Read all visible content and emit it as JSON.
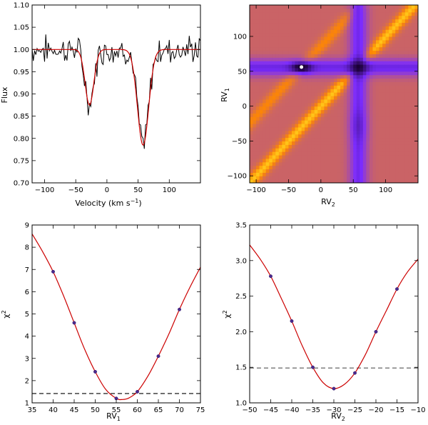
{
  "chart_data": [
    {
      "id": "spectrum",
      "type": "line",
      "xlabel": "Velocity (km s",
      "xlabel_sup": "−1",
      "xlabel_end": ")",
      "ylabel": "Flux",
      "xlim": [
        -120,
        150
      ],
      "ylim": [
        0.7,
        1.1
      ],
      "xticks": [
        -100,
        -50,
        0,
        50,
        100
      ],
      "xtick_labels": [
        "−100",
        "−50",
        "0",
        "50",
        "100"
      ],
      "yticks": [
        0.7,
        0.75,
        0.8,
        0.85,
        0.9,
        0.95,
        1.0,
        1.05,
        1.1
      ],
      "ytick_labels": [
        "0.70",
        "0.75",
        "0.80",
        "0.85",
        "0.90",
        "0.95",
        "1.00",
        "1.05",
        "1.10"
      ],
      "model": {
        "name": "fit",
        "color": "#cc0000",
        "continuum": 1.0,
        "components": [
          {
            "center": -28,
            "depth": 0.125,
            "sigma": 7
          },
          {
            "center": 58,
            "depth": 0.215,
            "sigma": 9
          }
        ]
      },
      "observed": {
        "name": "observed",
        "color": "#000000",
        "step": 2,
        "noise": 0.025
      }
    },
    {
      "id": "chi2map",
      "type": "heatmap",
      "xlabel": "RV",
      "xlabel_sub": "2",
      "ylabel": "RV",
      "ylabel_sub": "1",
      "xlim": [
        -110,
        150
      ],
      "ylim": [
        -110,
        145
      ],
      "xticks": [
        -100,
        -50,
        0,
        50,
        100
      ],
      "xtick_labels": [
        "−100",
        "−50",
        "0",
        "50",
        "100"
      ],
      "yticks": [
        -100,
        -50,
        0,
        50,
        100
      ],
      "ytick_labels": [
        "−100",
        "−50",
        "0",
        "50",
        "100"
      ],
      "grid_step": 5,
      "minimum": {
        "rv2": -30,
        "rv1": 56
      },
      "secondary_minimum": {
        "rv2": 58,
        "rv1": -28
      },
      "colors": {
        "low": "#1a0033",
        "mid": "#7b2cff",
        "high": "#ff8800",
        "peak": "#ffff33",
        "marker": "#ffffff"
      }
    },
    {
      "id": "chi2_rv1",
      "type": "line",
      "xlabel": "RV",
      "xlabel_sub": "1",
      "ylabel": "χ",
      "ylabel_sup": "2",
      "xlim": [
        35,
        75
      ],
      "ylim": [
        1,
        9
      ],
      "xticks": [
        35,
        40,
        45,
        50,
        55,
        60,
        65,
        70,
        75
      ],
      "xtick_labels": [
        "35",
        "40",
        "45",
        "50",
        "55",
        "60",
        "65",
        "70",
        "75"
      ],
      "yticks": [
        1,
        2,
        3,
        4,
        5,
        6,
        7,
        8,
        9
      ],
      "ytick_labels": [
        "1",
        "2",
        "3",
        "4",
        "5",
        "6",
        "7",
        "8",
        "9"
      ],
      "points": {
        "x": [
          40,
          45,
          50,
          55,
          60,
          65,
          70
        ],
        "y": [
          6.9,
          4.6,
          2.4,
          1.2,
          1.5,
          3.1,
          5.2
        ]
      },
      "curve": {
        "x": [
          35,
          37.5,
          40,
          42.5,
          45,
          47.5,
          50,
          52.5,
          55,
          56.5,
          58,
          60,
          62.5,
          65,
          67.5,
          70,
          72.5,
          75
        ],
        "y": [
          8.6,
          7.8,
          6.9,
          5.8,
          4.6,
          3.4,
          2.4,
          1.6,
          1.2,
          1.15,
          1.22,
          1.5,
          2.2,
          3.1,
          4.1,
          5.2,
          6.2,
          7.1
        ]
      },
      "threshold": 1.42
    },
    {
      "id": "chi2_rv2",
      "type": "line",
      "xlabel": "RV",
      "xlabel_sub": "2",
      "ylabel": "χ",
      "ylabel_sup": "2",
      "xlim": [
        -50,
        -10
      ],
      "ylim": [
        1.0,
        3.5
      ],
      "xticks": [
        -50,
        -45,
        -40,
        -35,
        -30,
        -25,
        -20,
        -15,
        -10
      ],
      "xtick_labels": [
        "−50",
        "−45",
        "−40",
        "−35",
        "−30",
        "−25",
        "−20",
        "−15",
        "−10"
      ],
      "yticks": [
        1.0,
        1.5,
        2.0,
        2.5,
        3.0,
        3.5
      ],
      "ytick_labels": [
        "1.0",
        "1.5",
        "2.0",
        "2.5",
        "3.0",
        "3.5"
      ],
      "points": {
        "x": [
          -45,
          -40,
          -35,
          -30,
          -25,
          -20,
          -15
        ],
        "y": [
          2.78,
          2.15,
          1.5,
          1.2,
          1.42,
          2.0,
          2.6
        ]
      },
      "curve": {
        "x": [
          -50,
          -47.5,
          -45,
          -42.5,
          -40,
          -37.5,
          -35,
          -32.5,
          -30,
          -27.5,
          -25,
          -22.5,
          -20,
          -17.5,
          -15,
          -12.5,
          -10
        ],
        "y": [
          3.22,
          3.02,
          2.78,
          2.47,
          2.15,
          1.8,
          1.5,
          1.28,
          1.2,
          1.26,
          1.42,
          1.68,
          2.0,
          2.3,
          2.6,
          2.84,
          3.02
        ]
      },
      "threshold": 1.49
    }
  ]
}
